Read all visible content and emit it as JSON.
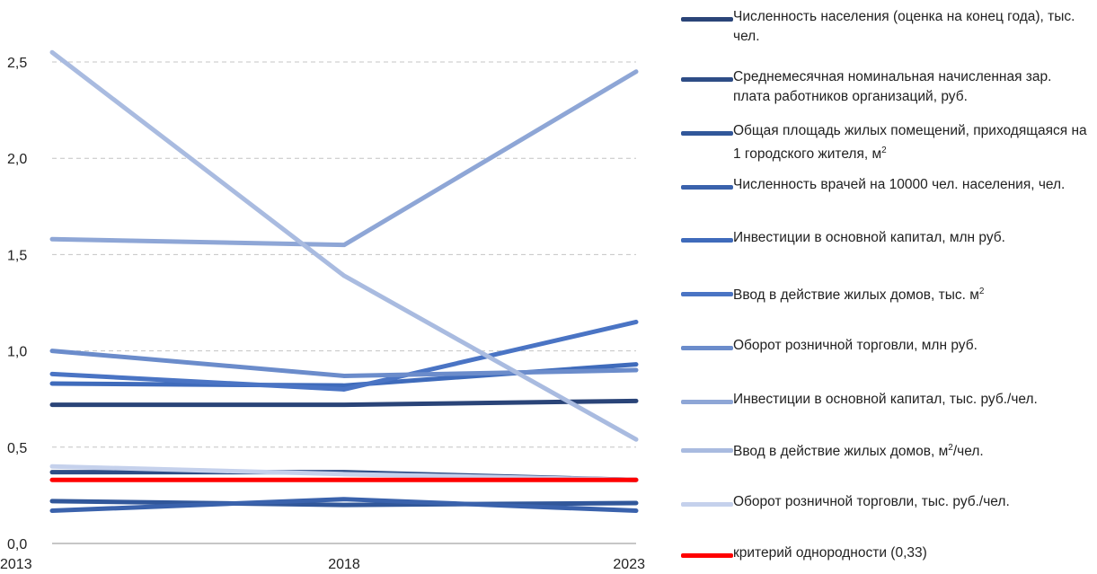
{
  "chart_data": {
    "type": "line",
    "x": [
      "2013",
      "2018",
      "2023"
    ],
    "ylim": [
      0,
      2.5
    ],
    "yticks": [
      "0,0",
      "0,5",
      "1,0",
      "1,5",
      "2,0",
      "2,5"
    ],
    "ytick_values": [
      0,
      0.5,
      1.0,
      1.5,
      2.0,
      2.5
    ],
    "grid": true,
    "legend_position": "right",
    "series": [
      {
        "name": "Численность населения (оценка на  конец года), тыс. чел.",
        "values": [
          0.72,
          0.72,
          0.74
        ],
        "color": "#2a4478"
      },
      {
        "name": "Среднемесячная номинальная начисленная зар. плата работников организаций, руб.",
        "values": [
          0.37,
          0.37,
          0.33
        ],
        "color": "#2e4d86"
      },
      {
        "name": "Общая площадь жилых помещений, приходящаяся на 1 городского жителя, м",
        "sup": "2",
        "values": [
          0.22,
          0.2,
          0.21
        ],
        "color": "#31579a"
      },
      {
        "name": "Численность врачей на  10000 чел. населения, чел.",
        "values": [
          0.17,
          0.23,
          0.17
        ],
        "color": "#3a62ac"
      },
      {
        "name": "Инвестиции  в основной капитал,  млн руб.",
        "values": [
          0.83,
          0.82,
          0.93
        ],
        "color": "#3f6bbb"
      },
      {
        "name": "Ввод  в действие жилых домов, тыс. м",
        "sup": "2",
        "values": [
          0.88,
          0.8,
          1.15
        ],
        "color": "#4a74c4"
      },
      {
        "name": "Оборот  розничной  торговли,  млн руб.",
        "values": [
          1.0,
          0.87,
          0.9
        ],
        "color": "#6b8ccb"
      },
      {
        "name": "Инвестиции в основной капитал,  тыс. руб./чел.",
        "values": [
          1.58,
          1.55,
          2.45
        ],
        "color": "#8ea6d6"
      },
      {
        "name": "Ввод  в действие жилых домов, м",
        "sup": "2",
        "suffix": "/чел.",
        "values": [
          2.55,
          1.39,
          0.54
        ],
        "color": "#a9bbe0"
      },
      {
        "name": "Оборот розничной торговли, тыс. руб./чел.",
        "values": [
          0.4,
          0.36,
          0.33
        ],
        "color": "#c5d1ec"
      },
      {
        "name": "критерий однородности (0,33)",
        "values": [
          0.33,
          0.33,
          0.33
        ],
        "color": "#ff0000"
      }
    ]
  }
}
